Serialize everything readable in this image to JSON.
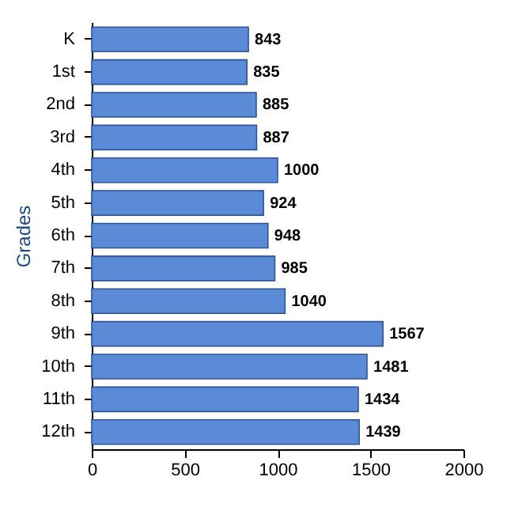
{
  "chart_data": {
    "type": "bar",
    "orientation": "horizontal",
    "ylabel": "Grades",
    "categories": [
      "K",
      "1st",
      "2nd",
      "3rd",
      "4th",
      "5th",
      "6th",
      "7th",
      "8th",
      "9th",
      "10th",
      "11th",
      "12th"
    ],
    "values": [
      843,
      835,
      885,
      887,
      1000,
      924,
      948,
      985,
      1040,
      1567,
      1481,
      1434,
      1439
    ],
    "color": "#5b8ad6",
    "xlim": [
      0,
      2000
    ],
    "xticks": [
      0,
      500,
      1000,
      1500,
      2000
    ],
    "grid": false,
    "data_labels": true
  }
}
